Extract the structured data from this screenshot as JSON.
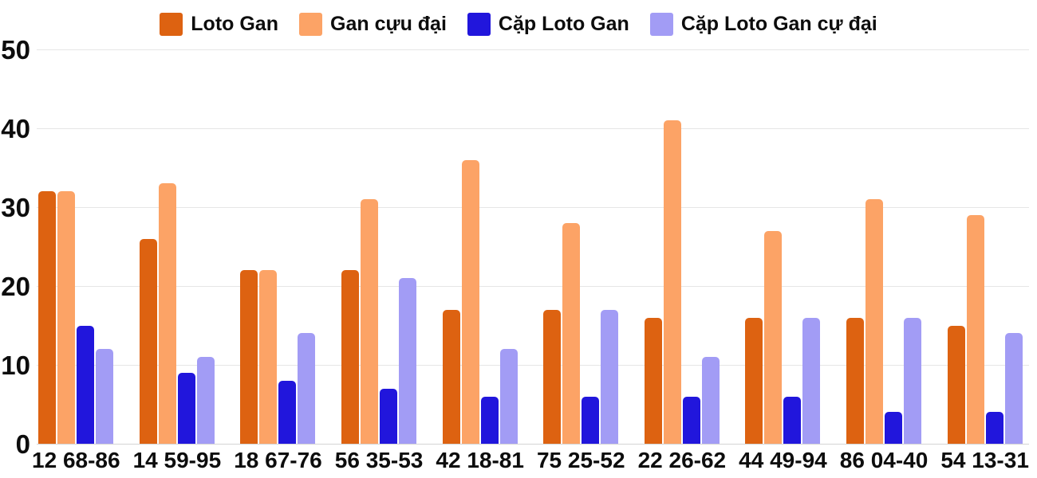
{
  "chart_data": {
    "type": "bar",
    "title": "",
    "categories": [
      "12 68-86",
      "14 59-95",
      "18 67-76",
      "56 35-53",
      "42 18-81",
      "75 25-52",
      "22 26-62",
      "44 49-94",
      "86 04-40",
      "54 13-31"
    ],
    "series": [
      {
        "name": "Loto Gan",
        "color": "#dd6211",
        "values": [
          32,
          26,
          22,
          22,
          17,
          17,
          16,
          16,
          16,
          15
        ]
      },
      {
        "name": "Gan cựu đại",
        "color": "#fca366",
        "values": [
          32,
          33,
          22,
          31,
          36,
          28,
          41,
          27,
          31,
          29
        ]
      },
      {
        "name": "Cặp Loto Gan",
        "color": "#2116dc",
        "values": [
          15,
          9,
          8,
          7,
          6,
          6,
          6,
          6,
          4,
          4
        ]
      },
      {
        "name": "Cặp Loto Gan cự đại",
        "color": "#a29cf5",
        "values": [
          12,
          11,
          14,
          21,
          12,
          17,
          11,
          16,
          16,
          14
        ]
      }
    ],
    "ylim": [
      0,
      50
    ],
    "yticks": [
      0,
      10,
      20,
      30,
      40,
      50
    ],
    "grid": true,
    "legend_position": "top",
    "colors": {
      "background": "#ffffff",
      "gridline": "#e6e6e6",
      "baseline": "#d4d4d4",
      "text": "#0d0d0d"
    }
  }
}
